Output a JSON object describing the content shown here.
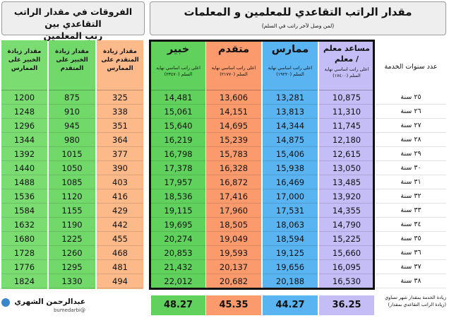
{
  "header": {
    "title": "مقدار الراتب التقاعدي للمعلمين و المعلمات",
    "subtitle": "(لمن وصل لآخر راتب في السلم)",
    "diff_title_line1": "الفروقات في مقدار الراتب التقاعدي بين",
    "diff_title_line2": "رتب المعلمين"
  },
  "columns": {
    "years_header": "عدد سنوات الخدمة",
    "assistant": {
      "name": "مساعد معلم / معلم",
      "sub": "اعلى راتب اساسي نهاية السلم (١٧٤٠٠)"
    },
    "practitioner": {
      "name": "ممارس",
      "sub": "اعلى راتب اساسي نهاية السلم (١٩٢٢٠)"
    },
    "advanced": {
      "name": "متقدم",
      "sub": "اعلى راتب اساسي نهاية السلم (٢١٧٧٠)"
    },
    "expert": {
      "name": "خبير",
      "sub": "اعلى راتب اساسي نهاية السلم (٢٣٤٧٠)"
    },
    "diff_adv_prac": "مقدار زيادة المتقدم على الممارس",
    "diff_exp_adv": "مقدار زيادة الخبير على المتقدم",
    "diff_exp_prac": "مقدار زيادة الخبير على الممارس"
  },
  "years": [
    "٢٥ سنة",
    "٢٦ سنة",
    "٢٧ سنة",
    "٢٨ سنة",
    "٢٩ سنة",
    "٣٠ سنة",
    "٣١ سنة",
    "٣٢ سنة",
    "٣٣ سنة",
    "٣٤ سنة",
    "٣٥ سنة",
    "٣٦ سنة",
    "٣٧ سنة",
    "٣٨ سنة"
  ],
  "assistant": [
    "10,875",
    "11,310",
    "11,745",
    "12,180",
    "12,615",
    "13,050",
    "13,485",
    "13,920",
    "14,355",
    "14,790",
    "15,225",
    "15,660",
    "16,095",
    "16,530"
  ],
  "practitioner": [
    "13,281",
    "13,813",
    "14,344",
    "14,875",
    "15,406",
    "15,938",
    "16,469",
    "17,000",
    "17,531",
    "18,063",
    "18,594",
    "19,125",
    "19,656",
    "20,188"
  ],
  "advanced": [
    "13,606",
    "14,151",
    "14,695",
    "15,239",
    "15,783",
    "16,328",
    "16,872",
    "17,416",
    "17,960",
    "18,505",
    "19,049",
    "19,593",
    "20,137",
    "20,682"
  ],
  "expert": [
    "14,481",
    "15,061",
    "15,640",
    "16,219",
    "16,798",
    "17,378",
    "17,957",
    "18,536",
    "19,115",
    "19,695",
    "20,274",
    "20,853",
    "21,432",
    "22,012"
  ],
  "diff_adv_prac": [
    "325",
    "338",
    "351",
    "364",
    "377",
    "390",
    "403",
    "416",
    "429",
    "442",
    "455",
    "468",
    "481",
    "494"
  ],
  "diff_exp_adv": [
    "875",
    "910",
    "945",
    "980",
    "1015",
    "1050",
    "1085",
    "1120",
    "1155",
    "1190",
    "1225",
    "1260",
    "1295",
    "1330"
  ],
  "diff_exp_prac": [
    "1200",
    "1248",
    "1296",
    "1344",
    "1392",
    "1440",
    "1488",
    "1536",
    "1584",
    "1632",
    "1680",
    "1728",
    "1776",
    "1824"
  ],
  "totals": {
    "assistant": "36.25",
    "practitioner": "44.27",
    "advanced": "45.35",
    "expert": "48.27",
    "note": "زيادة الخدمة بمقدار شهر تساوي (زيادة الراتب التقاعدي بمقدار)"
  },
  "author": {
    "name": "عبدالرحمن الشهري",
    "handle": "@bumedarbi"
  },
  "colors": {
    "assistant": "#c4bdf6",
    "practitioner": "#59b4f1",
    "advanced": "#fb9a6c",
    "expert": "#5fd15c",
    "diff_orange": "#fcb98a",
    "diff_green": "#71d86a",
    "diff_green2": "#7bdc72",
    "header_bg": "#eeeeee"
  }
}
